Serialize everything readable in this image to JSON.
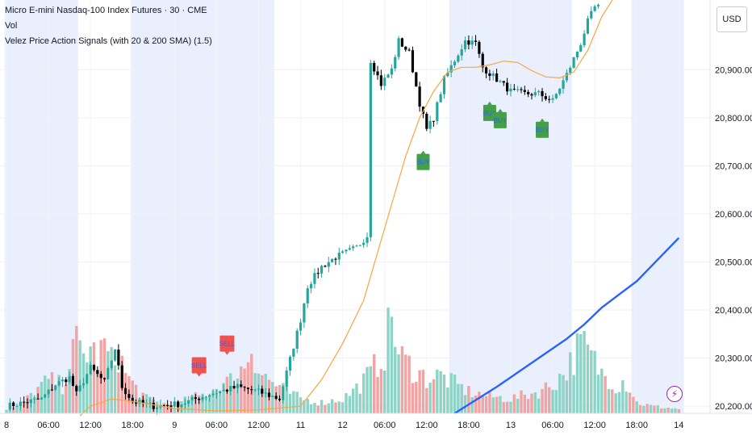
{
  "legend": {
    "title": "Micro E-mini Nasdaq-100 Index Futures · 30 · CME",
    "vol": "Vol",
    "indicator": "Velez Price Action Signals (with 20 & 200 SMA) (1.5)"
  },
  "currency": "USD",
  "colors": {
    "up": "#26a69a",
    "down": "#000000",
    "vol_up": "#8fd2c6",
    "vol_down": "#f4a3a3",
    "sma20": "#f5a742",
    "sma200": "#2962ff",
    "session": "#e9effd",
    "buy_bg": "#43a047",
    "buy_text": "#2962ff",
    "sell_bg": "#ef5350",
    "sell_text": "#2962ff",
    "bolt": "#9c27b0"
  },
  "chart_data": {
    "type": "candlestick",
    "y_ticks": [
      "20,900.00",
      "20,800.00",
      "20,700.00",
      "20,600.00",
      "20,500.00",
      "20,400.00",
      "20,300.00",
      "20,200.00"
    ],
    "y_tick_values": [
      20900,
      20800,
      20700,
      20600,
      20500,
      20400,
      20300,
      20200
    ],
    "ylim": [
      20185,
      21045
    ],
    "x_ticks": [
      "8",
      "06:00",
      "12:00",
      "18:00",
      "9",
      "06:00",
      "12:00",
      "11",
      "12",
      "06:00",
      "12:00",
      "18:00",
      "13",
      "06:00",
      "12:00",
      "18:00",
      "14"
    ],
    "x_tick_bars": [
      0,
      12,
      24,
      36,
      48,
      60,
      72,
      84,
      96,
      108,
      120,
      132,
      144,
      156,
      168,
      180,
      192
    ],
    "bar_count": 193,
    "session_bands": [
      [
        -1,
        20
      ],
      [
        35,
        76
      ],
      [
        126,
        161
      ],
      [
        178,
        193
      ]
    ],
    "key_closes": [
      [
        0,
        20200
      ],
      [
        10,
        20215
      ],
      [
        14,
        20245
      ],
      [
        18,
        20260
      ],
      [
        20,
        20225
      ],
      [
        24,
        20280
      ],
      [
        28,
        20250
      ],
      [
        31,
        20320
      ],
      [
        33,
        20240
      ],
      [
        36,
        20210
      ],
      [
        42,
        20200
      ],
      [
        50,
        20205
      ],
      [
        58,
        20225
      ],
      [
        66,
        20240
      ],
      [
        72,
        20230
      ],
      [
        78,
        20215
      ],
      [
        84,
        20380
      ],
      [
        86,
        20450
      ],
      [
        90,
        20490
      ],
      [
        94,
        20510
      ],
      [
        100,
        20530
      ],
      [
        103,
        20555
      ],
      [
        104,
        20920
      ],
      [
        107,
        20870
      ],
      [
        110,
        20900
      ],
      [
        112,
        20960
      ],
      [
        115,
        20935
      ],
      [
        118,
        20830
      ],
      [
        120,
        20775
      ],
      [
        122,
        20800
      ],
      [
        125,
        20880
      ],
      [
        128,
        20920
      ],
      [
        131,
        20960
      ],
      [
        134,
        20955
      ],
      [
        136,
        20905
      ],
      [
        140,
        20880
      ],
      [
        144,
        20855
      ],
      [
        148,
        20850
      ],
      [
        152,
        20850
      ],
      [
        156,
        20835
      ],
      [
        160,
        20890
      ],
      [
        164,
        20955
      ],
      [
        166,
        21000
      ],
      [
        168,
        21030
      ]
    ],
    "sma20_points": [
      [
        21,
        20180
      ],
      [
        24,
        20200
      ],
      [
        30,
        20215
      ],
      [
        36,
        20210
      ],
      [
        48,
        20195
      ],
      [
        60,
        20190
      ],
      [
        72,
        20192
      ],
      [
        84,
        20200
      ],
      [
        90,
        20255
      ],
      [
        96,
        20330
      ],
      [
        102,
        20420
      ],
      [
        106,
        20520
      ],
      [
        110,
        20620
      ],
      [
        114,
        20720
      ],
      [
        118,
        20800
      ],
      [
        122,
        20855
      ],
      [
        126,
        20895
      ],
      [
        130,
        20905
      ],
      [
        134,
        20905
      ],
      [
        138,
        20910
      ],
      [
        142,
        20918
      ],
      [
        146,
        20915
      ],
      [
        150,
        20898
      ],
      [
        154,
        20885
      ],
      [
        158,
        20883
      ],
      [
        162,
        20895
      ],
      [
        166,
        20940
      ],
      [
        170,
        21010
      ],
      [
        173,
        21045
      ]
    ],
    "sma200_points": [
      [
        128,
        20185
      ],
      [
        140,
        20240
      ],
      [
        150,
        20290
      ],
      [
        160,
        20340
      ],
      [
        165,
        20370
      ],
      [
        170,
        20405
      ],
      [
        180,
        20460
      ],
      [
        192,
        20550
      ]
    ],
    "buy_signals": [
      [
        119,
        20708
      ],
      [
        138,
        20810
      ],
      [
        141,
        20795
      ],
      [
        153,
        20775
      ]
    ],
    "sell_signals": [
      [
        55,
        20285
      ],
      [
        63,
        20330
      ]
    ],
    "volume_shape": [
      [
        0,
        6
      ],
      [
        4,
        10
      ],
      [
        8,
        30
      ],
      [
        12,
        45
      ],
      [
        16,
        38
      ],
      [
        18,
        70
      ],
      [
        20,
        95
      ],
      [
        22,
        80
      ],
      [
        24,
        90
      ],
      [
        26,
        75
      ],
      [
        28,
        92
      ],
      [
        30,
        70
      ],
      [
        32,
        82
      ],
      [
        34,
        55
      ],
      [
        36,
        40
      ],
      [
        40,
        20
      ],
      [
        44,
        14
      ],
      [
        48,
        10
      ],
      [
        52,
        20
      ],
      [
        56,
        25
      ],
      [
        60,
        35
      ],
      [
        64,
        45
      ],
      [
        68,
        65
      ],
      [
        70,
        95
      ],
      [
        72,
        60
      ],
      [
        74,
        50
      ],
      [
        76,
        42
      ],
      [
        80,
        30
      ],
      [
        84,
        20
      ],
      [
        90,
        15
      ],
      [
        96,
        20
      ],
      [
        100,
        35
      ],
      [
        104,
        55
      ],
      [
        108,
        85
      ],
      [
        110,
        135
      ],
      [
        112,
        80
      ],
      [
        116,
        62
      ],
      [
        120,
        48
      ],
      [
        124,
        52
      ],
      [
        128,
        40
      ],
      [
        132,
        30
      ],
      [
        136,
        25
      ],
      [
        140,
        22
      ],
      [
        144,
        20
      ],
      [
        148,
        25
      ],
      [
        152,
        30
      ],
      [
        156,
        40
      ],
      [
        160,
        60
      ],
      [
        164,
        95
      ],
      [
        166,
        85
      ],
      [
        168,
        70
      ],
      [
        170,
        55
      ],
      [
        172,
        50
      ],
      [
        174,
        38
      ],
      [
        176,
        45
      ],
      [
        178,
        35
      ],
      [
        180,
        15
      ],
      [
        184,
        10
      ],
      [
        188,
        8
      ],
      [
        192,
        6
      ]
    ]
  }
}
